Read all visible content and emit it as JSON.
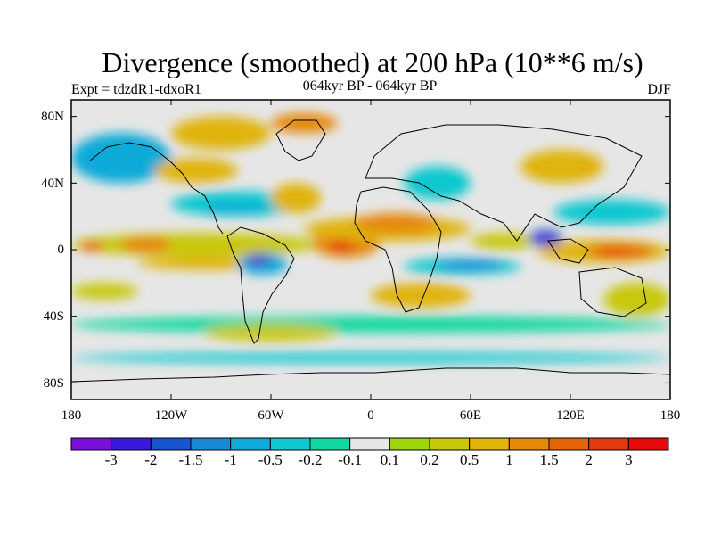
{
  "title": "Divergence (smoothed) at 200 hPa (10**6 m/s)",
  "experiment": "Expt = tdzdR1-tdxoR1",
  "period": "064kyr BP - 064kyr BP",
  "season": "DJF",
  "colors": {
    "background": "#e6e6e6",
    "coast": "#000000"
  },
  "latitude_ticks": [
    {
      "value": 80,
      "label": "80N"
    },
    {
      "value": 40,
      "label": "40N"
    },
    {
      "value": 0,
      "label": "0"
    },
    {
      "value": -40,
      "label": "40S"
    },
    {
      "value": -80,
      "label": "80S"
    }
  ],
  "longitude_ticks": [
    {
      "value": -180,
      "label": "180"
    },
    {
      "value": -120,
      "label": "120W"
    },
    {
      "value": -60,
      "label": "60W"
    },
    {
      "value": 0,
      "label": "0"
    },
    {
      "value": 60,
      "label": "60E"
    },
    {
      "value": 120,
      "label": "120E"
    },
    {
      "value": 180,
      "label": "180"
    }
  ],
  "colorbar": {
    "colors": [
      "#7a10d8",
      "#3a1ad8",
      "#1856d0",
      "#1a8ad8",
      "#10aad8",
      "#10c8d0",
      "#10d8a0",
      "#e6e6e6",
      "#9ed40a",
      "#c8c808",
      "#e0b408",
      "#e68808",
      "#e66408",
      "#e43a10",
      "#e60a0a"
    ],
    "labels": [
      "-3",
      "-2",
      "-1.5",
      "-1",
      "-0.5",
      "-0.2",
      "-0.1",
      "0.1",
      "0.2",
      "0.5",
      "1",
      "1.5",
      "2",
      "3"
    ]
  },
  "map_regions": [
    {
      "level": 9,
      "lon": [
        -180,
        -30
      ],
      "lat": [
        -4,
        10
      ]
    },
    {
      "level": 11,
      "lon": [
        -150,
        -120
      ],
      "lat": [
        -2,
        8
      ]
    },
    {
      "level": 12,
      "lon": [
        -175,
        -160
      ],
      "lat": [
        -1,
        5
      ]
    },
    {
      "level": 10,
      "lon": [
        -140,
        -60
      ],
      "lat": [
        -12,
        -4
      ]
    },
    {
      "level": 11,
      "lon": [
        -35,
        5
      ],
      "lat": [
        -5,
        12
      ]
    },
    {
      "level": 13,
      "lon": [
        -25,
        -10
      ],
      "lat": [
        -1,
        6
      ]
    },
    {
      "level": 4,
      "lon": [
        -80,
        -50
      ],
      "lat": [
        -15,
        -2
      ]
    },
    {
      "level": 2,
      "lon": [
        -75,
        -60
      ],
      "lat": [
        -10,
        -3
      ]
    },
    {
      "level": 0,
      "lon": [
        -72,
        -64
      ],
      "lat": [
        -8,
        -4
      ]
    },
    {
      "level": 5,
      "lon": [
        -120,
        -40
      ],
      "lat": [
        20,
        35
      ]
    },
    {
      "level": 4,
      "lon": [
        -100,
        -60
      ],
      "lat": [
        22,
        28
      ]
    },
    {
      "level": 10,
      "lon": [
        -60,
        -30
      ],
      "lat": [
        22,
        40
      ]
    },
    {
      "level": 10,
      "lon": [
        -120,
        -60
      ],
      "lat": [
        60,
        80
      ]
    },
    {
      "level": 11,
      "lon": [
        -60,
        -20
      ],
      "lat": [
        70,
        82
      ]
    },
    {
      "level": 10,
      "lon": [
        -40,
        60
      ],
      "lat": [
        5,
        20
      ]
    },
    {
      "level": 11,
      "lon": [
        -10,
        40
      ],
      "lat": [
        10,
        22
      ]
    },
    {
      "level": 5,
      "lon": [
        20,
        90
      ],
      "lat": [
        -15,
        -5
      ]
    },
    {
      "level": 3,
      "lon": [
        40,
        80
      ],
      "lat": [
        -12,
        -6
      ]
    },
    {
      "level": 9,
      "lon": [
        60,
        100
      ],
      "lat": [
        0,
        10
      ]
    },
    {
      "level": 10,
      "lon": [
        100,
        180
      ],
      "lat": [
        -8,
        6
      ]
    },
    {
      "level": 12,
      "lon": [
        130,
        170
      ],
      "lat": [
        -5,
        3
      ]
    },
    {
      "level": 13,
      "lon": [
        135,
        155
      ],
      "lat": [
        -3,
        1
      ]
    },
    {
      "level": 2,
      "lon": [
        95,
        115
      ],
      "lat": [
        2,
        12
      ]
    },
    {
      "level": 0,
      "lon": [
        100,
        108
      ],
      "lat": [
        5,
        9
      ]
    },
    {
      "level": 5,
      "lon": [
        110,
        180
      ],
      "lat": [
        15,
        30
      ]
    },
    {
      "level": 10,
      "lon": [
        90,
        140
      ],
      "lat": [
        40,
        60
      ]
    },
    {
      "level": 4,
      "lon": [
        -180,
        -120
      ],
      "lat": [
        40,
        70
      ]
    },
    {
      "level": 9,
      "lon": [
        -180,
        -140
      ],
      "lat": [
        -30,
        -20
      ]
    },
    {
      "level": 6,
      "lon": [
        -180,
        180
      ],
      "lat": [
        -50,
        -40
      ]
    },
    {
      "level": 9,
      "lon": [
        -100,
        -20
      ],
      "lat": [
        -55,
        -45
      ]
    },
    {
      "level": 5,
      "lon": [
        -180,
        180
      ],
      "lat": [
        -68,
        -62
      ]
    },
    {
      "level": 9,
      "lon": [
        140,
        180
      ],
      "lat": [
        -40,
        -20
      ]
    },
    {
      "level": 10,
      "lon": [
        -130,
        -80
      ],
      "lat": [
        40,
        55
      ]
    },
    {
      "level": 5,
      "lon": [
        20,
        60
      ],
      "lat": [
        30,
        50
      ]
    },
    {
      "level": 10,
      "lon": [
        0,
        60
      ],
      "lat": [
        -35,
        -20
      ]
    }
  ]
}
